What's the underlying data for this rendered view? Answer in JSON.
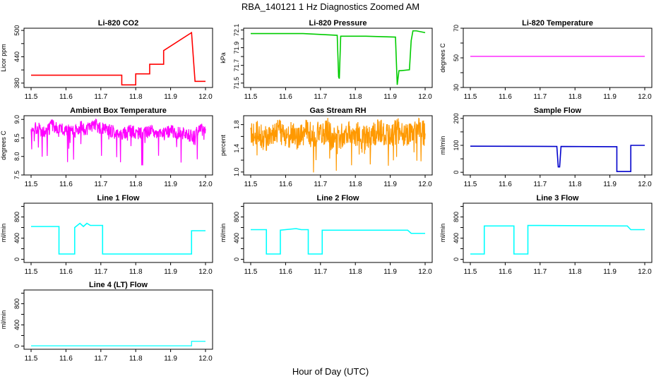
{
  "figure": {
    "title": "RBA_140121  1 Hz Diagnostics Zoomed AM",
    "xlabel": "Hour of Day (UTC)"
  },
  "chart_data": [
    {
      "type": "line",
      "title": "Li-820 CO2",
      "ylabel": "Licor ppm",
      "color": "#ff0000",
      "xlim": [
        11.5,
        12.0
      ],
      "ylim": [
        370,
        505
      ],
      "xticks": [
        "11.5",
        "11.6",
        "11.7",
        "11.8",
        "11.9",
        "12.0"
      ],
      "yticks": [
        "380",
        "440",
        "500"
      ],
      "yticks_minor": [
        410,
        470
      ],
      "series": [
        {
          "name": "CO2",
          "x": [
            11.5,
            11.76,
            11.76,
            11.8,
            11.8,
            11.84,
            11.84,
            11.88,
            11.88,
            11.96,
            11.96,
            11.97,
            12.0
          ],
          "y": [
            398,
            398,
            376,
            376,
            401,
            401,
            423,
            423,
            454,
            495,
            495,
            384,
            384
          ]
        }
      ]
    },
    {
      "type": "line",
      "title": "Li-820 Pressure",
      "ylabel": "kPa",
      "color": "#00cc00",
      "xlim": [
        11.5,
        12.0
      ],
      "ylim": [
        71.45,
        72.12
      ],
      "xticks": [
        "11.5",
        "11.6",
        "11.7",
        "11.8",
        "11.9",
        "12.0"
      ],
      "yticks": [
        "71.5",
        "71.7",
        "71.9",
        "72.1"
      ],
      "yticks_minor": [
        71.6,
        71.8,
        72.0
      ],
      "series": [
        {
          "name": "Pressure",
          "x": [
            11.5,
            11.65,
            11.7,
            11.748,
            11.752,
            11.754,
            11.758,
            11.83,
            11.915,
            11.92,
            11.925,
            11.93,
            11.955,
            11.96,
            11.965,
            11.975,
            12.0
          ],
          "y": [
            72.06,
            72.06,
            72.05,
            72.04,
            71.57,
            71.55,
            72.03,
            72.03,
            72.02,
            71.48,
            71.64,
            71.64,
            71.65,
            71.98,
            72.09,
            72.09,
            72.07
          ]
        }
      ]
    },
    {
      "type": "line",
      "title": "Li-820 Temperature",
      "ylabel": "degrees C",
      "color": "#ff00ff",
      "xlim": [
        11.5,
        12.0
      ],
      "ylim": [
        30,
        70
      ],
      "xticks": [
        "11.5",
        "11.6",
        "11.7",
        "11.8",
        "11.9",
        "12.0"
      ],
      "yticks": [
        "30",
        "50",
        "70"
      ],
      "yticks_minor": [
        40,
        60
      ],
      "series": [
        {
          "name": "Temperature",
          "x": [
            11.5,
            12.0
          ],
          "y": [
            51,
            51
          ]
        }
      ]
    },
    {
      "type": "line",
      "title": "Ambient Box Temperature",
      "ylabel": "degrees C",
      "color": "#ff00ff",
      "xlim": [
        11.5,
        12.0
      ],
      "ylim": [
        7.5,
        9.1
      ],
      "xticks": [
        "11.5",
        "11.6",
        "11.7",
        "11.8",
        "11.9",
        "12.0"
      ],
      "yticks": [
        "7.5",
        "8.0",
        "8.5",
        "9.0"
      ],
      "yticks_minor": [],
      "series": [
        {
          "name": "Box Temperature",
          "x": [
            11.5,
            11.52,
            11.54,
            11.56,
            11.58,
            11.6,
            11.62,
            11.64,
            11.66,
            11.68,
            11.7,
            11.72,
            11.74,
            11.76,
            11.78,
            11.8,
            11.82,
            11.84,
            11.86,
            11.88,
            11.9,
            11.92,
            11.94,
            11.96,
            11.98,
            12.0
          ],
          "y": [
            8.7,
            8.8,
            8.6,
            8.85,
            8.7,
            8.75,
            8.65,
            8.8,
            8.7,
            8.9,
            8.75,
            8.7,
            8.65,
            8.6,
            8.7,
            8.65,
            8.6,
            8.7,
            8.65,
            8.6,
            8.7,
            8.65,
            8.6,
            8.55,
            8.7,
            8.75
          ]
        }
      ]
    },
    {
      "type": "line",
      "title": "Gas Stream RH",
      "ylabel": "percent",
      "color": "#ff9900",
      "xlim": [
        11.5,
        12.0
      ],
      "ylim": [
        0.95,
        1.95
      ],
      "xticks": [
        "11.5",
        "11.6",
        "11.7",
        "11.8",
        "11.9",
        "12.0"
      ],
      "yticks": [
        "1.0",
        "1.4",
        "1.8"
      ],
      "yticks_minor": [
        1.2,
        1.6
      ],
      "series": [
        {
          "name": "RH",
          "x": [
            11.5,
            11.52,
            11.54,
            11.56,
            11.58,
            11.6,
            11.62,
            11.64,
            11.66,
            11.68,
            11.7,
            11.72,
            11.74,
            11.76,
            11.78,
            11.8,
            11.82,
            11.84,
            11.86,
            11.88,
            11.9,
            11.92,
            11.94,
            11.96,
            11.98,
            12.0
          ],
          "y": [
            1.6,
            1.7,
            1.55,
            1.65,
            1.7,
            1.6,
            1.65,
            1.55,
            1.7,
            1.6,
            1.65,
            1.7,
            1.55,
            1.6,
            1.7,
            1.65,
            1.6,
            1.55,
            1.7,
            1.65,
            1.6,
            1.7,
            1.65,
            1.6,
            1.7,
            1.65
          ]
        }
      ]
    },
    {
      "type": "line",
      "title": "Sample Flow",
      "ylabel": "ml/min",
      "color": "#0000cc",
      "xlim": [
        11.5,
        12.0
      ],
      "ylim": [
        -10,
        210
      ],
      "xticks": [
        "11.5",
        "11.6",
        "11.7",
        "11.8",
        "11.9",
        "12.0"
      ],
      "yticks": [
        "0",
        "100",
        "200"
      ],
      "yticks_minor": [
        50,
        150
      ],
      "series": [
        {
          "name": "Sample Flow",
          "x": [
            11.5,
            11.748,
            11.752,
            11.756,
            11.76,
            11.91,
            11.92,
            11.92,
            11.96,
            11.96,
            12.0
          ],
          "y": [
            97,
            96,
            20,
            20,
            96,
            95,
            95,
            3,
            3,
            100,
            100
          ]
        }
      ]
    },
    {
      "type": "line",
      "title": "Line 1 Flow",
      "ylabel": "ml/min",
      "color": "#00ffff",
      "xlim": [
        11.5,
        12.0
      ],
      "ylim": [
        -60,
        1060
      ],
      "xticks": [
        "11.5",
        "11.6",
        "11.7",
        "11.8",
        "11.9",
        "12.0"
      ],
      "yticks": [
        "0",
        "400",
        "800"
      ],
      "yticks_minor": [
        200,
        600,
        1000
      ],
      "series": [
        {
          "name": "Line 1 Flow",
          "x": [
            11.5,
            11.58,
            11.58,
            11.625,
            11.625,
            11.64,
            11.65,
            11.66,
            11.67,
            11.705,
            11.705,
            11.96,
            11.96,
            12.0
          ],
          "y": [
            620,
            620,
            100,
            100,
            600,
            680,
            620,
            680,
            640,
            640,
            100,
            100,
            540,
            540
          ]
        }
      ]
    },
    {
      "type": "line",
      "title": "Line 2 Flow",
      "ylabel": "ml/min",
      "color": "#00ffff",
      "xlim": [
        11.5,
        12.0
      ],
      "ylim": [
        -60,
        1060
      ],
      "xticks": [
        "11.5",
        "11.6",
        "11.7",
        "11.8",
        "11.9",
        "12.0"
      ],
      "yticks": [
        "0",
        "400",
        "800"
      ],
      "yticks_minor": [
        200,
        600,
        1000
      ],
      "series": [
        {
          "name": "Line 2 Flow",
          "x": [
            11.5,
            11.545,
            11.545,
            11.585,
            11.585,
            11.63,
            11.645,
            11.665,
            11.665,
            11.705,
            11.705,
            11.95,
            11.96,
            12.0
          ],
          "y": [
            560,
            560,
            100,
            100,
            550,
            580,
            560,
            560,
            100,
            100,
            550,
            550,
            490,
            490
          ]
        }
      ]
    },
    {
      "type": "line",
      "title": "Line 3 Flow",
      "ylabel": "ml/min",
      "color": "#00ffff",
      "xlim": [
        11.5,
        12.0
      ],
      "ylim": [
        -60,
        1060
      ],
      "xticks": [
        "11.5",
        "11.6",
        "11.7",
        "11.8",
        "11.9",
        "12.0"
      ],
      "yticks": [
        "0",
        "400",
        "800"
      ],
      "yticks_minor": [
        200,
        600,
        1000
      ],
      "series": [
        {
          "name": "Line 3 Flow",
          "x": [
            11.5,
            11.54,
            11.54,
            11.625,
            11.625,
            11.665,
            11.665,
            11.95,
            11.96,
            12.0
          ],
          "y": [
            100,
            100,
            630,
            630,
            100,
            100,
            640,
            630,
            560,
            560
          ]
        }
      ]
    },
    {
      "type": "line",
      "title": "Line 4 (LT) Flow",
      "ylabel": "ml/min",
      "color": "#00ffff",
      "xlim": [
        11.5,
        12.0
      ],
      "ylim": [
        -60,
        1060
      ],
      "xticks": [
        "11.5",
        "11.6",
        "11.7",
        "11.8",
        "11.9",
        "12.0"
      ],
      "yticks": [
        "0",
        "400",
        "800"
      ],
      "yticks_minor": [
        200,
        600,
        1000
      ],
      "series": [
        {
          "name": "Line 4 Flow",
          "x": [
            11.5,
            11.96,
            11.96,
            12.0
          ],
          "y": [
            5,
            5,
            90,
            90
          ]
        }
      ]
    }
  ]
}
